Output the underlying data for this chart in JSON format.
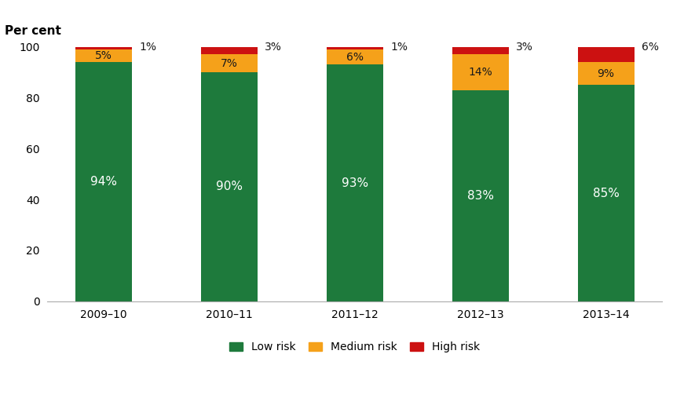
{
  "categories": [
    "2009–10",
    "2010–11",
    "2011–12",
    "2012–13",
    "2013–14"
  ],
  "low_risk": [
    94,
    90,
    93,
    83,
    85
  ],
  "medium_risk": [
    5,
    7,
    6,
    14,
    9
  ],
  "high_risk": [
    1,
    3,
    1,
    3,
    6
  ],
  "low_color": "#1e7a3c",
  "medium_color": "#f5a11a",
  "high_color": "#cc1111",
  "ylabel": "Per cent",
  "ylim": [
    0,
    100
  ],
  "yticks": [
    0,
    20,
    40,
    60,
    80,
    100
  ],
  "legend_labels": [
    "Low risk",
    "Medium risk",
    "High risk"
  ],
  "bar_width": 0.45,
  "low_label_fontsize": 11,
  "med_label_fontsize": 10,
  "high_label_fontsize": 10,
  "axis_fontsize": 10,
  "legend_fontsize": 10,
  "ylabel_fontsize": 11
}
